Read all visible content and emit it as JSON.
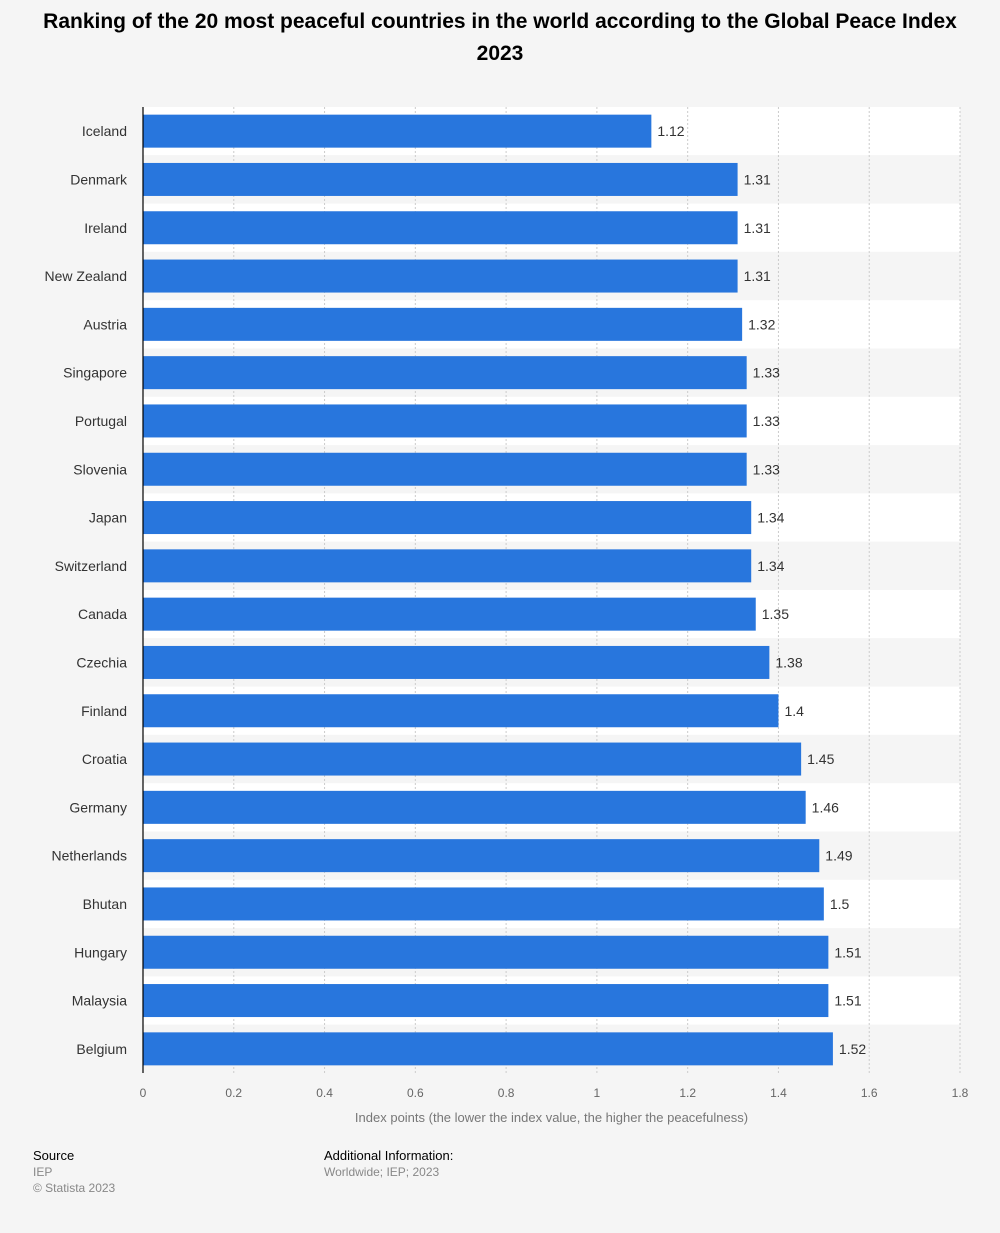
{
  "chart_data": {
    "type": "bar",
    "orientation": "horizontal",
    "title": "Ranking of the 20 most peaceful countries in the world according to the Global Peace Index 2023",
    "xlabel": "Index points (the lower the index value, the higher the peacefulness)",
    "ylabel": "",
    "categories": [
      "Iceland",
      "Denmark",
      "Ireland",
      "New Zealand",
      "Austria",
      "Singapore",
      "Portugal",
      "Slovenia",
      "Japan",
      "Switzerland",
      "Canada",
      "Czechia",
      "Finland",
      "Croatia",
      "Germany",
      "Netherlands",
      "Bhutan",
      "Hungary",
      "Malaysia",
      "Belgium"
    ],
    "values": [
      1.12,
      1.31,
      1.31,
      1.31,
      1.32,
      1.33,
      1.33,
      1.33,
      1.34,
      1.34,
      1.35,
      1.38,
      1.4,
      1.45,
      1.46,
      1.49,
      1.5,
      1.51,
      1.51,
      1.52
    ],
    "value_labels": [
      "1.12",
      "1.31",
      "1.31",
      "1.31",
      "1.32",
      "1.33",
      "1.33",
      "1.33",
      "1.34",
      "1.34",
      "1.35",
      "1.38",
      "1.4",
      "1.45",
      "1.46",
      "1.49",
      "1.5",
      "1.51",
      "1.51",
      "1.52"
    ],
    "xlim": [
      0,
      1.8
    ],
    "xticks": [
      0,
      0.2,
      0.4,
      0.6,
      0.8,
      1,
      1.2,
      1.4,
      1.6,
      1.8
    ],
    "xtick_labels": [
      "0",
      "0.2",
      "0.4",
      "0.6",
      "0.8",
      "1",
      "1.2",
      "1.4",
      "1.6",
      "1.8"
    ],
    "grid": true,
    "bar_color": "#2876dd"
  },
  "footer": {
    "source_heading": "Source",
    "source_value": "IEP",
    "copyright": "© Statista 2023",
    "additional_heading": "Additional Information:",
    "additional_value": "Worldwide; IEP; 2023"
  }
}
